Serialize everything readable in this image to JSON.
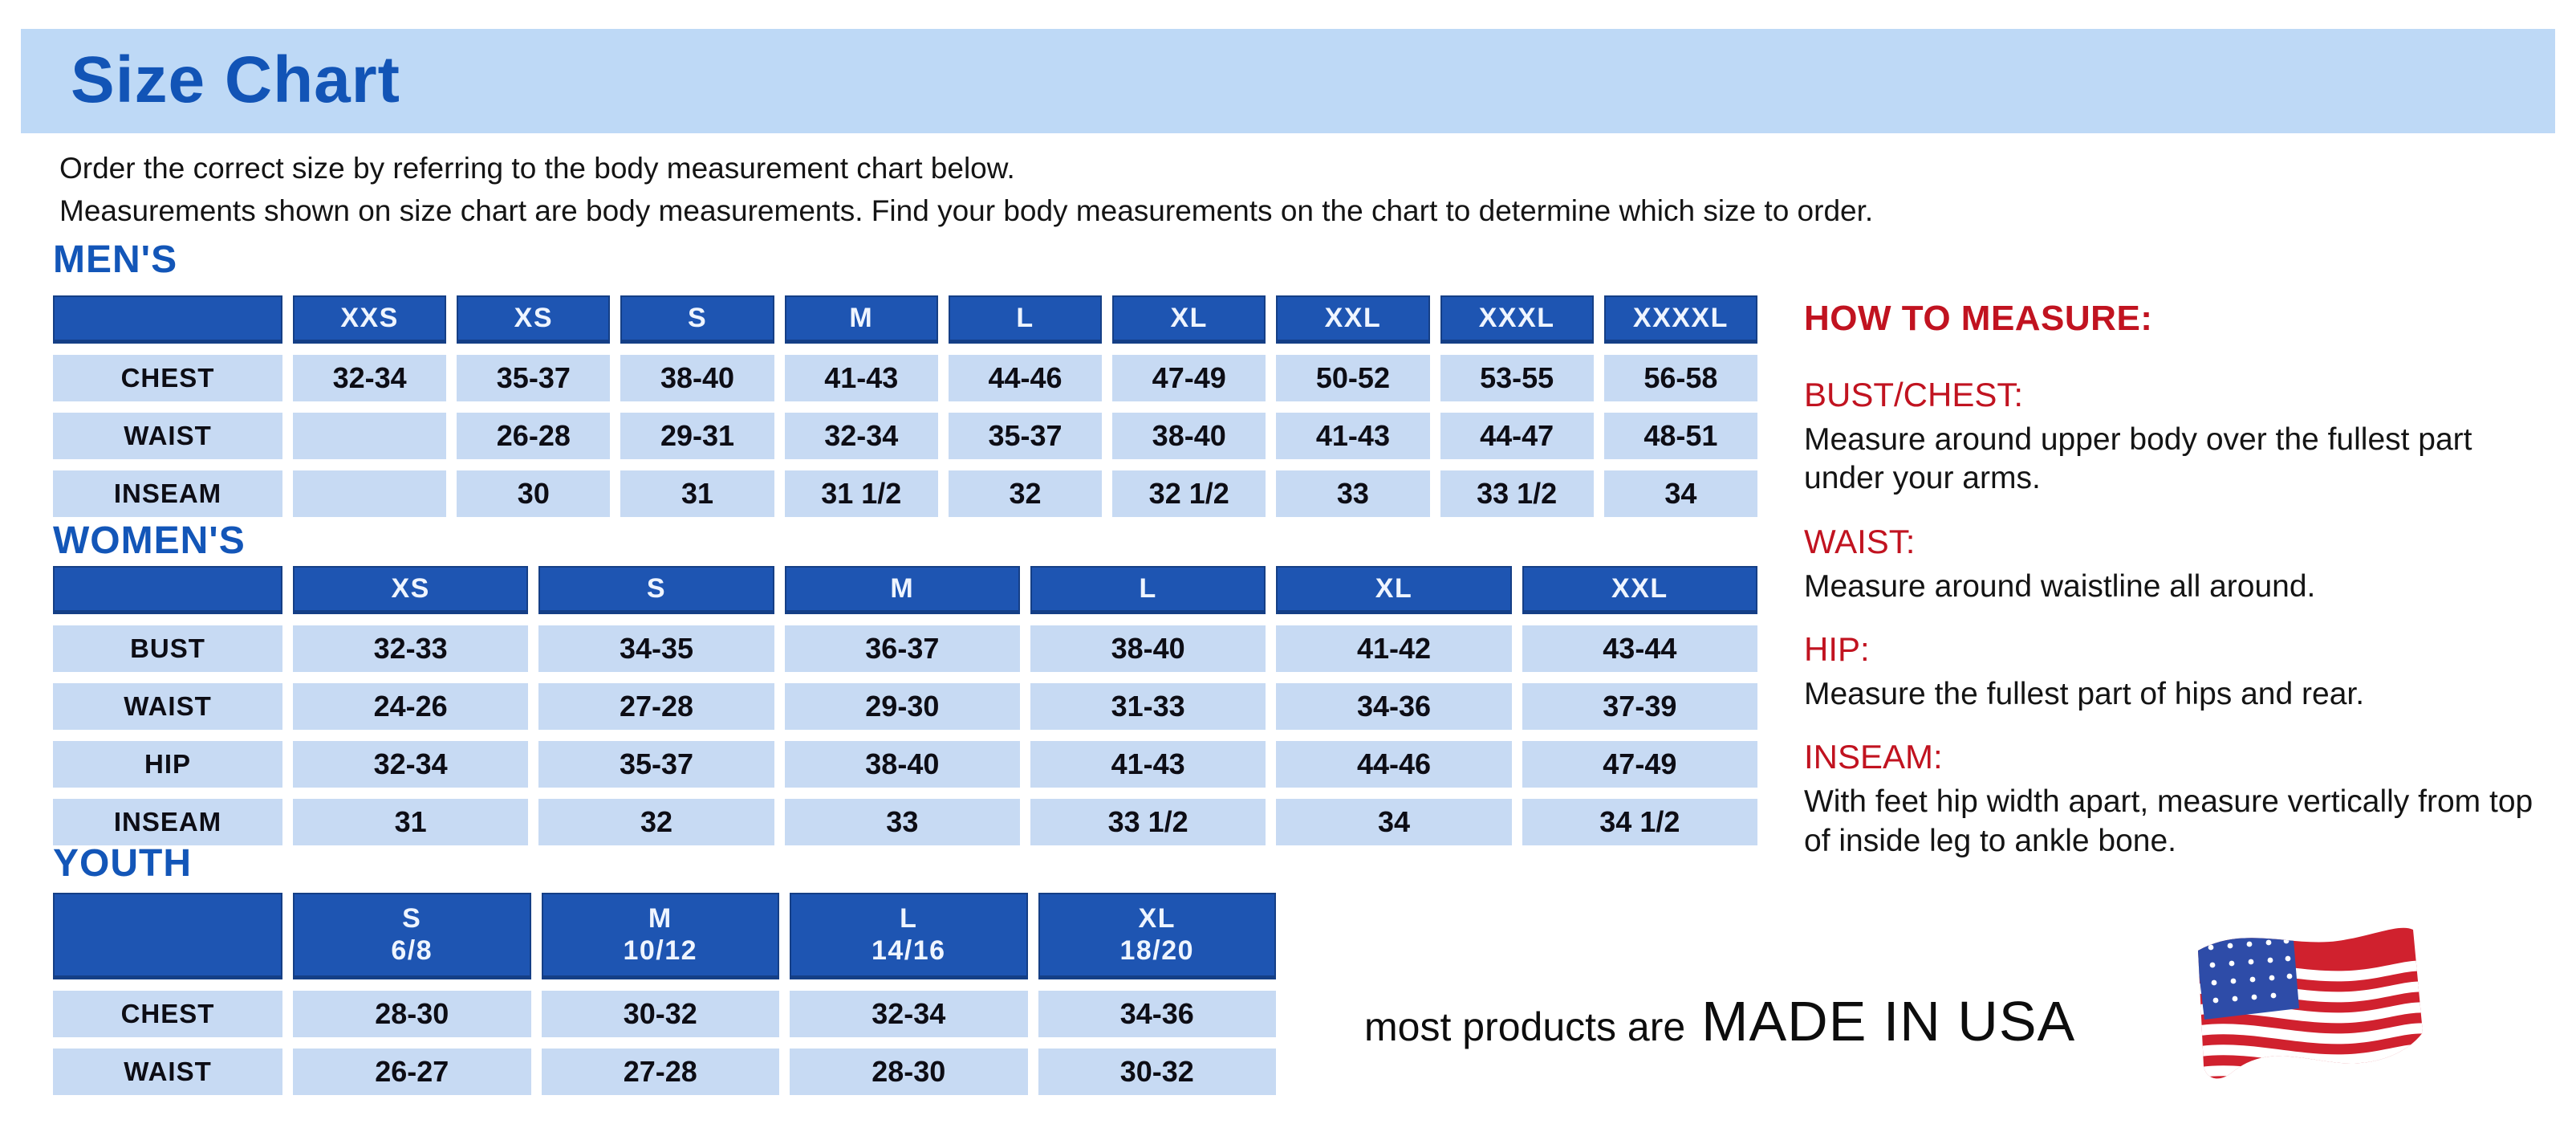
{
  "page": {
    "title": "Size Chart",
    "intro_line1": "Order the correct size by referring to the body measurement chart below.",
    "intro_line2": "Measurements shown on size chart are body measurements.  Find your body measurements on the chart to determine which size to order."
  },
  "colors": {
    "banner_blue": "#BED9F6",
    "title_blue": "#1254B6",
    "header_cell_blue": "#1E55B2",
    "body_cell_blue": "#C7DAF3",
    "accent_red": "#C11320"
  },
  "tables": [
    {
      "section": "MEN'S",
      "columns": [
        "XXS",
        "XS",
        "S",
        "M",
        "L",
        "XL",
        "XXL",
        "XXXL",
        "XXXXL"
      ],
      "rows": [
        {
          "label": "CHEST",
          "values": [
            "32-34",
            "35-37",
            "38-40",
            "41-43",
            "44-46",
            "47-49",
            "50-52",
            "53-55",
            "56-58"
          ]
        },
        {
          "label": "WAIST",
          "values": [
            "",
            "26-28",
            "29-31",
            "32-34",
            "35-37",
            "38-40",
            "41-43",
            "44-47",
            "48-51"
          ]
        },
        {
          "label": "INSEAM",
          "values": [
            "",
            "30",
            "31",
            "31 1/2",
            "32",
            "32 1/2",
            "33",
            "33 1/2",
            "34"
          ]
        }
      ]
    },
    {
      "section": "WOMEN'S",
      "columns": [
        "XS",
        "S",
        "M",
        "L",
        "XL",
        "XXL"
      ],
      "rows": [
        {
          "label": "BUST",
          "values": [
            "32-33",
            "34-35",
            "36-37",
            "38-40",
            "41-42",
            "43-44"
          ]
        },
        {
          "label": "WAIST",
          "values": [
            "24-26",
            "27-28",
            "29-30",
            "31-33",
            "34-36",
            "37-39"
          ]
        },
        {
          "label": "HIP",
          "values": [
            "32-34",
            "35-37",
            "38-40",
            "41-43",
            "44-46",
            "47-49"
          ]
        },
        {
          "label": "INSEAM",
          "values": [
            "31",
            "32",
            "33",
            "33 1/2",
            "34",
            "34 1/2"
          ]
        }
      ]
    },
    {
      "section": "YOUTH",
      "columns": [
        {
          "size": "S",
          "range": "6/8"
        },
        {
          "size": "M",
          "range": "10/12"
        },
        {
          "size": "L",
          "range": "14/16"
        },
        {
          "size": "XL",
          "range": "18/20"
        }
      ],
      "rows": [
        {
          "label": "CHEST",
          "values": [
            "28-30",
            "30-32",
            "32-34",
            "34-36"
          ]
        },
        {
          "label": "WAIST",
          "values": [
            "26-27",
            "27-28",
            "28-30",
            "30-32"
          ]
        }
      ]
    }
  ],
  "how_to_measure": {
    "heading": "HOW TO MEASURE:",
    "items": [
      {
        "term": "BUST/CHEST:",
        "description": "Measure around upper body over the fullest part under your arms."
      },
      {
        "term": "WAIST:",
        "description": "Measure around waistline all around."
      },
      {
        "term": "HIP:",
        "description": "Measure the fullest part of hips and rear."
      },
      {
        "term": "INSEAM:",
        "description": "With feet hip width apart, measure vertically from top of inside leg to ankle bone."
      }
    ]
  },
  "footer": {
    "made_in_prefix": "most products are",
    "made_in": "MADE IN USA",
    "flag": "usa-flag-icon"
  }
}
